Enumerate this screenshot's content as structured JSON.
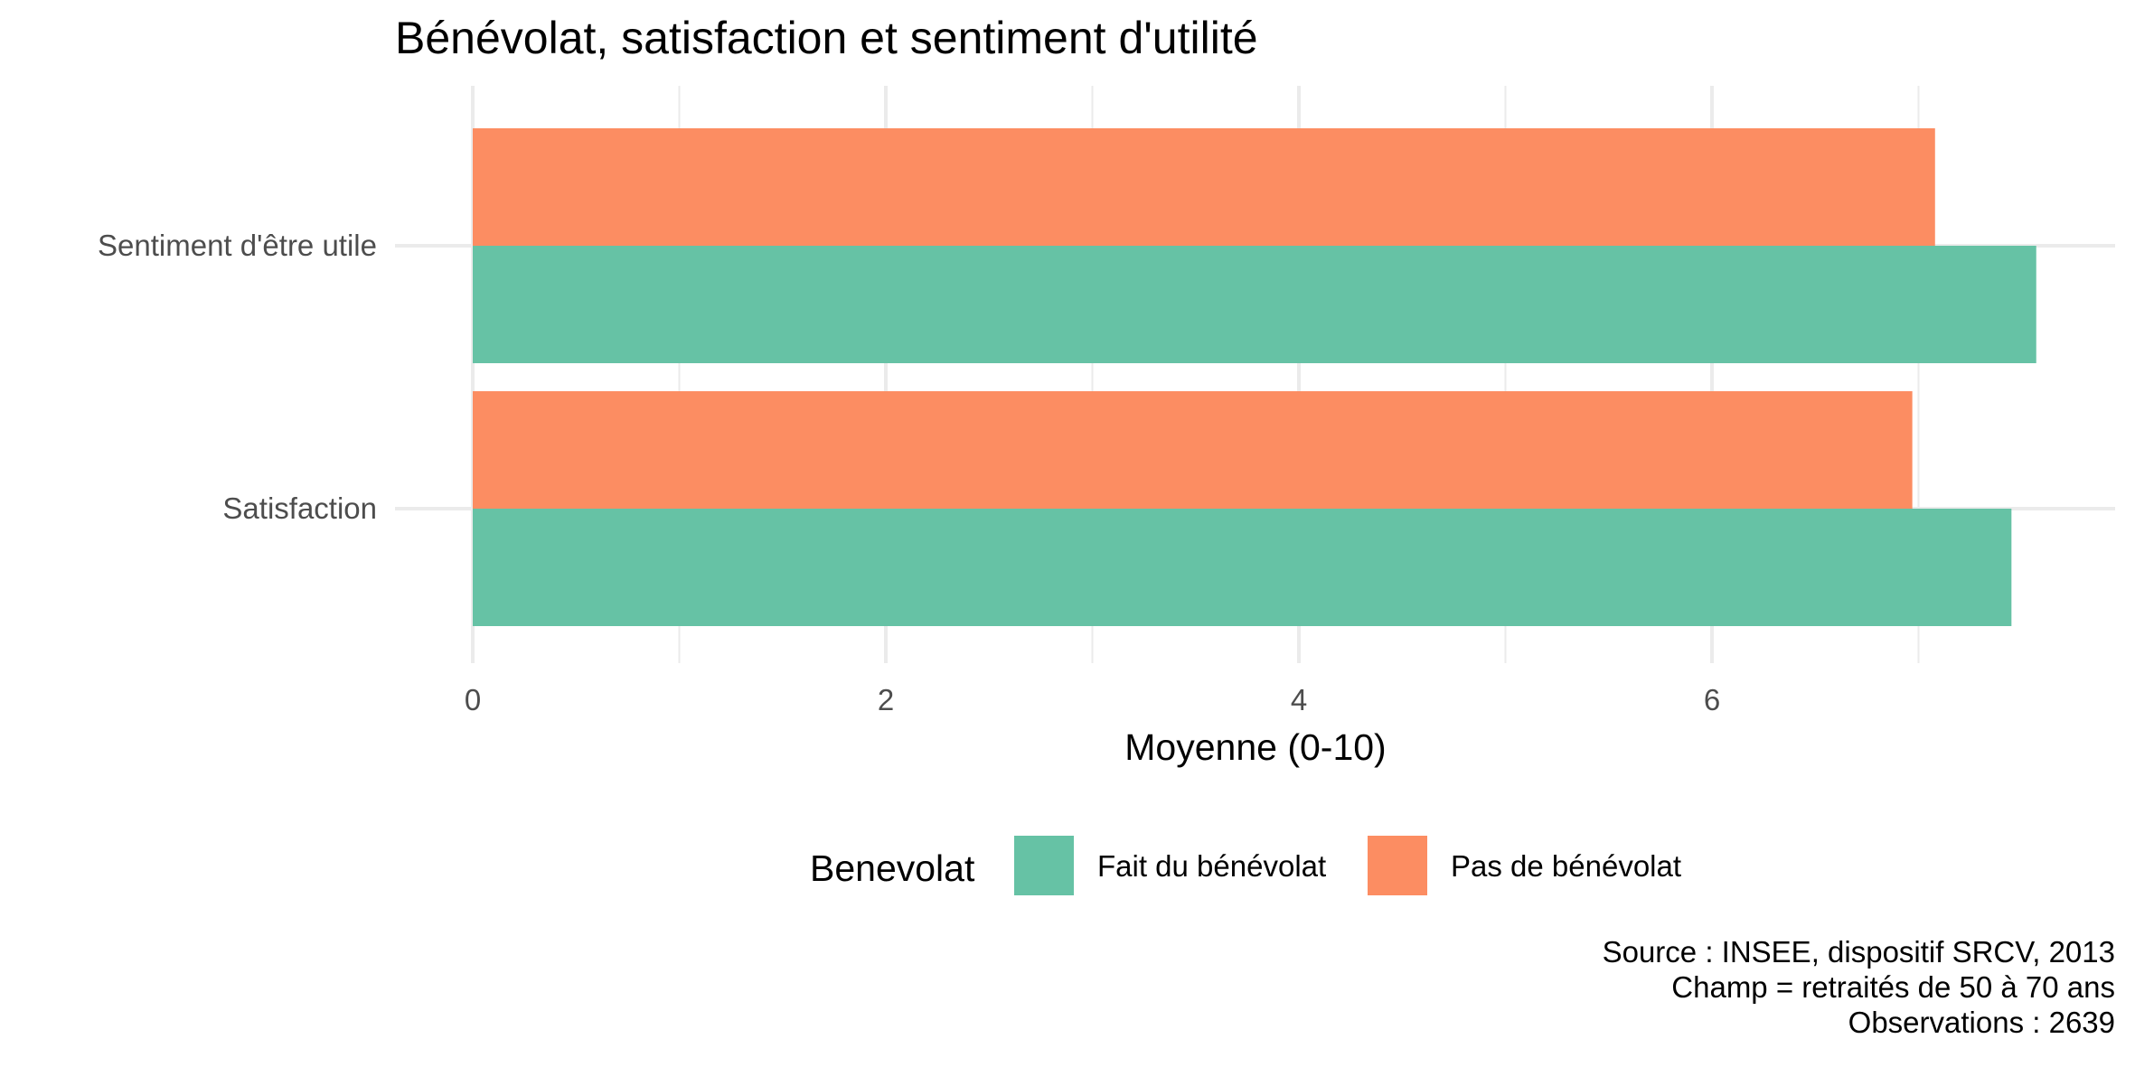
{
  "chart_data": {
    "type": "bar",
    "orientation": "horizontal",
    "title": "Bénévolat, satisfaction et sentiment d'utilité",
    "xlabel": "Moyenne (0-10)",
    "ylabel": "",
    "categories": [
      "Satisfaction",
      "Sentiment d'être utile"
    ],
    "series": [
      {
        "name": "Fait du bénévolat",
        "color": "#66c2a5",
        "values": [
          7.45,
          7.57
        ]
      },
      {
        "name": "Pas de bénévolat",
        "color": "#fc8d62",
        "values": [
          6.97,
          7.08
        ]
      }
    ],
    "xlim": [
      0,
      7.95
    ],
    "xticks": [
      0,
      2,
      4,
      6
    ],
    "grid": true,
    "legend": {
      "title": "Benevolat",
      "position": "bottom",
      "labels": [
        "Fait du bénévolat",
        "Pas de bénévolat"
      ]
    },
    "caption": [
      "Source : INSEE, dispositif SRCV, 2013",
      "Champ = retraités de 50 à 70 ans",
      "Observations : 2639"
    ]
  }
}
